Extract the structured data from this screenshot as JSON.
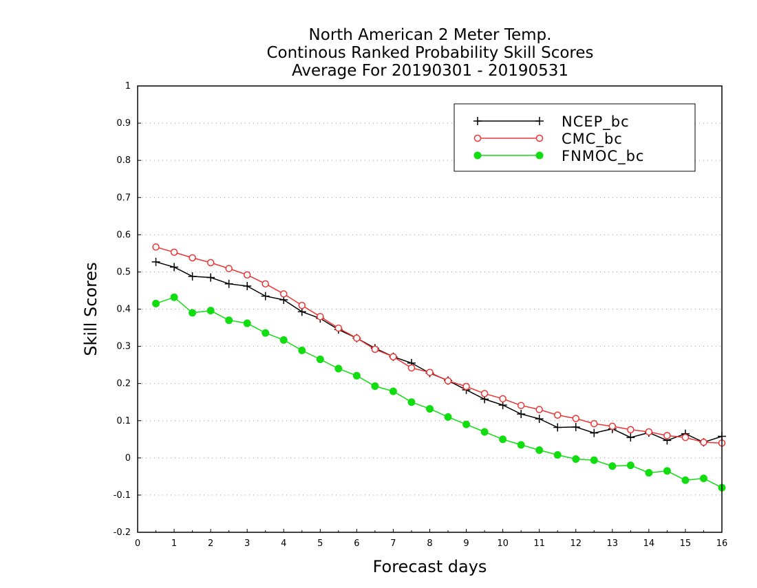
{
  "chart_data": {
    "type": "line",
    "title": [
      "North American 2 Meter Temp.",
      "Continous Ranked Probability Skill Scores",
      "Average For 20190301 - 20190531"
    ],
    "xlabel": "Forecast days",
    "ylabel": "Skill Scores",
    "xlim": [
      0,
      16
    ],
    "ylim": [
      -0.2,
      1
    ],
    "xticks": [
      0,
      1,
      2,
      3,
      4,
      5,
      6,
      7,
      8,
      9,
      10,
      11,
      12,
      13,
      14,
      15,
      16
    ],
    "xtick_labels": [
      "0",
      "1",
      "2",
      "3",
      "4",
      "5",
      "6",
      "7",
      "8",
      "9",
      "10",
      "11",
      "12",
      "13",
      "14",
      "15",
      "16"
    ],
    "yticks": [
      -0.2,
      -0.1,
      0,
      0.1,
      0.2,
      0.3,
      0.4,
      0.5,
      0.6,
      0.7,
      0.8,
      0.9,
      1
    ],
    "ytick_labels": [
      "-0.2",
      "-0.1",
      "0",
      "0.1",
      "0.2",
      "0.3",
      "0.4",
      "0.5",
      "0.6",
      "0.7",
      "0.8",
      "0.9",
      "1"
    ],
    "grid": "horizontal dotted",
    "legend_position": "top-right",
    "x": [
      0.5,
      1,
      1.5,
      2,
      2.5,
      3,
      3.5,
      4,
      4.5,
      5,
      5.5,
      6,
      6.5,
      7,
      7.5,
      8,
      8.5,
      9,
      9.5,
      10,
      10.5,
      11,
      11.5,
      12,
      12.5,
      13,
      13.5,
      14,
      14.5,
      15,
      15.5,
      16
    ],
    "series": [
      {
        "name": "NCEP_bc",
        "color": "#000000",
        "marker": "plus",
        "values": [
          0.527,
          0.513,
          0.488,
          0.485,
          0.468,
          0.462,
          0.435,
          0.425,
          0.393,
          0.375,
          0.345,
          0.322,
          0.295,
          0.272,
          0.255,
          0.228,
          0.208,
          0.183,
          0.158,
          0.142,
          0.118,
          0.105,
          0.082,
          0.083,
          0.067,
          0.078,
          0.055,
          0.068,
          0.047,
          0.065,
          0.042,
          0.058
        ]
      },
      {
        "name": "CMC_bc",
        "color": "#ee3333",
        "marker": "open-circle",
        "values": [
          0.567,
          0.553,
          0.538,
          0.525,
          0.509,
          0.492,
          0.468,
          0.441,
          0.41,
          0.38,
          0.349,
          0.322,
          0.292,
          0.272,
          0.242,
          0.23,
          0.207,
          0.192,
          0.173,
          0.159,
          0.141,
          0.13,
          0.115,
          0.106,
          0.092,
          0.085,
          0.076,
          0.07,
          0.06,
          0.055,
          0.042,
          0.04
        ]
      },
      {
        "name": "FNMOC_bc",
        "color": "#11dd11",
        "marker": "filled-circle",
        "values": [
          0.415,
          0.432,
          0.39,
          0.396,
          0.37,
          0.362,
          0.336,
          0.317,
          0.289,
          0.265,
          0.24,
          0.221,
          0.193,
          0.179,
          0.15,
          0.132,
          0.11,
          0.09,
          0.07,
          0.05,
          0.035,
          0.021,
          0.008,
          -0.003,
          -0.006,
          -0.022,
          -0.02,
          -0.04,
          -0.035,
          -0.06,
          -0.055,
          -0.08
        ]
      }
    ]
  }
}
